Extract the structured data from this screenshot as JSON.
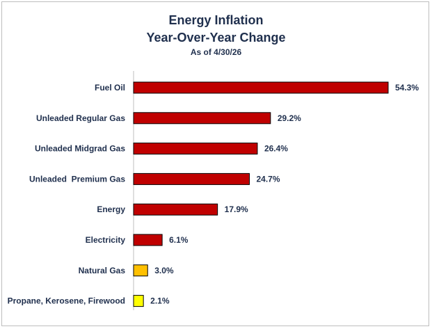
{
  "chart_data": {
    "type": "bar",
    "orientation": "horizontal",
    "title": "Energy Inflation",
    "subtitle": "Year-Over-Year Change",
    "note": "As of 4/30/26",
    "categories": [
      "Fuel Oil",
      "Unleaded Regular Gas",
      "Unleaded Midgrad Gas",
      "Unleaded  Premium Gas",
      "Energy",
      "Electricity",
      "Natural Gas",
      "Propane, Kerosene, Firewood"
    ],
    "values": [
      54.3,
      29.2,
      26.4,
      24.7,
      17.9,
      6.1,
      3.0,
      2.1
    ],
    "value_labels": [
      "54.3%",
      "29.2%",
      "26.4%",
      "24.7%",
      "17.9%",
      "6.1%",
      "3.0%",
      "2.1%"
    ],
    "bar_colors": [
      "#c00000",
      "#c00000",
      "#c00000",
      "#c00000",
      "#c00000",
      "#c00000",
      "#ffc000",
      "#ffff00"
    ],
    "xlim": [
      0,
      54.3
    ],
    "grid": false,
    "legend": "none"
  }
}
